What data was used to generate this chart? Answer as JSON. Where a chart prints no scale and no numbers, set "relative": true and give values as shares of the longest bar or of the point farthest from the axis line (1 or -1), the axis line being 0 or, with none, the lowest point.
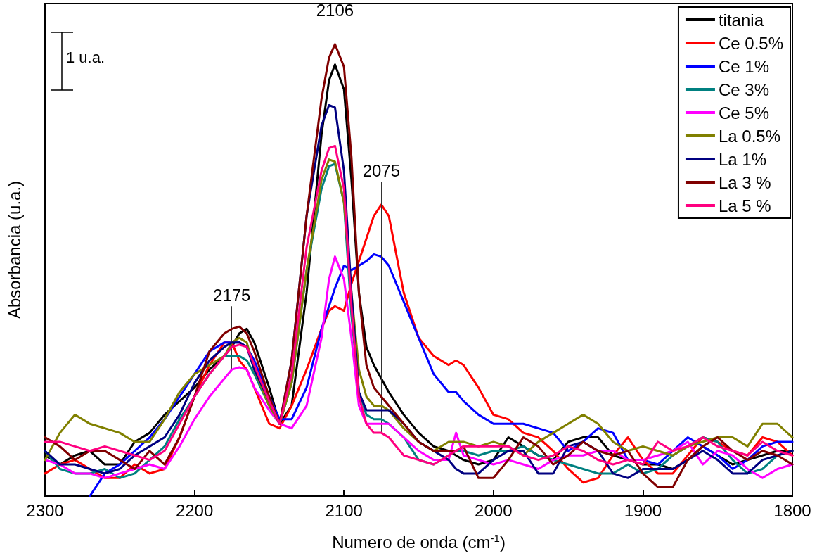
{
  "chart_data": {
    "type": "line",
    "relative": true,
    "xlabel": "Numero de onda (cm$^{-1}$)",
    "ylabel": "Absorbancia (u.a.)",
    "xlim": [
      2300,
      1800
    ],
    "xticks": [
      2300,
      2200,
      2100,
      2000,
      1900,
      1800
    ],
    "legend": "top right",
    "marker": "none",
    "line_style": "solid",
    "grid": false,
    "annotations": [
      "1 u.a."
    ],
    "ref_lines": [
      {
        "axis": "x",
        "value": 2175,
        "label": "2175"
      },
      {
        "axis": "x",
        "value": 2106,
        "label": "2106"
      },
      {
        "axis": "x",
        "value": 2075,
        "label": "2075"
      }
    ],
    "x": [
      2300,
      2290,
      2280,
      2270,
      2260,
      2250,
      2240,
      2230,
      2220,
      2210,
      2200,
      2190,
      2180,
      2175,
      2170,
      2165,
      2160,
      2150,
      2143,
      2135,
      2125,
      2115,
      2110,
      2106,
      2100,
      2095,
      2090,
      2085,
      2080,
      2075,
      2070,
      2060,
      2050,
      2040,
      2030,
      2025,
      2020,
      2010,
      2000,
      1990,
      1980,
      1970,
      1960,
      1950,
      1940,
      1930,
      1920,
      1910,
      1900,
      1890,
      1880,
      1870,
      1860,
      1850,
      1840,
      1830,
      1820,
      1810,
      1800
    ],
    "series": [
      {
        "name": "titania",
        "color": "#000000",
        "values": [
          0.09,
          0.07,
          0.09,
          0.1,
          0.07,
          0.07,
          0.12,
          0.14,
          0.18,
          0.21,
          0.24,
          0.28,
          0.31,
          0.33,
          0.36,
          0.37,
          0.34,
          0.24,
          0.16,
          0.2,
          0.45,
          0.8,
          0.92,
          0.955,
          0.9,
          0.7,
          0.45,
          0.33,
          0.29,
          0.26,
          0.23,
          0.18,
          0.14,
          0.11,
          0.1,
          0.09,
          0.08,
          0.07,
          0.08,
          0.13,
          0.11,
          0.09,
          0.08,
          0.12,
          0.13,
          0.13,
          0.09,
          0.08,
          0.07,
          0.07,
          0.06,
          0.08,
          0.11,
          0.09,
          0.07,
          0.08,
          0.09,
          0.1,
          0.1
        ]
      },
      {
        "name": "Ce 0.5%",
        "color": "#ff0000",
        "values": [
          0.05,
          0.07,
          0.08,
          0.06,
          0.04,
          0.04,
          0.07,
          0.05,
          0.06,
          0.13,
          0.22,
          0.29,
          0.34,
          0.34,
          0.3,
          0.28,
          0.24,
          0.16,
          0.15,
          0.2,
          0.28,
          0.37,
          0.41,
          0.42,
          0.41,
          0.47,
          0.52,
          0.57,
          0.62,
          0.645,
          0.62,
          0.45,
          0.35,
          0.31,
          0.29,
          0.3,
          0.29,
          0.24,
          0.18,
          0.17,
          0.14,
          0.13,
          0.1,
          0.06,
          0.03,
          0.04,
          0.09,
          0.13,
          0.08,
          0.05,
          0.05,
          0.09,
          0.13,
          0.12,
          0.1,
          0.09,
          0.13,
          0.12,
          0.09
        ]
      },
      {
        "name": "Ce 1%",
        "color": "#0000ff",
        "values": [
          null,
          null,
          null,
          0,
          0.05,
          0.07,
          0.1,
          0.13,
          0.17,
          0.22,
          0.27,
          0.32,
          0.34,
          0.34,
          0.34,
          0.33,
          0.3,
          0.22,
          0.17,
          0.17,
          0.24,
          0.37,
          0.42,
          0.46,
          0.51,
          0.5,
          0.51,
          0.52,
          0.535,
          0.53,
          0.51,
          0.43,
          0.35,
          0.27,
          0.23,
          0.23,
          0.21,
          0.18,
          0.16,
          0.16,
          0.16,
          0.15,
          0.14,
          0.1,
          0.12,
          0.15,
          0.14,
          0.08,
          0.08,
          0.07,
          0.1,
          0.13,
          0.11,
          0.09,
          0.06,
          0.08,
          0.11,
          0.12,
          0.12
        ]
      },
      {
        "name": "Ce 3%",
        "color": "#008080",
        "values": [
          0.1,
          0.06,
          0.05,
          0.05,
          0.06,
          0.04,
          0.05,
          0.08,
          0.11,
          0.17,
          0.22,
          0.27,
          0.31,
          0.31,
          0.31,
          0.3,
          0.27,
          0.2,
          0.16,
          0.25,
          0.5,
          0.68,
          0.73,
          0.735,
          0.65,
          0.4,
          0.23,
          0.18,
          0.17,
          0.17,
          0.16,
          0.13,
          0.08,
          0.07,
          0.09,
          0.1,
          0.1,
          0.09,
          0.1,
          0.1,
          0.11,
          0.09,
          0.08,
          0.07,
          0.06,
          0.05,
          0.05,
          0.07,
          0.05,
          0.06,
          0.09,
          0.11,
          0.13,
          0.12,
          0.08,
          0.05,
          0.06,
          0.09,
          0.1
        ]
      },
      {
        "name": "Ce 5%",
        "color": "#ff00ff",
        "values": [
          0.08,
          0.07,
          0.05,
          0.05,
          0.04,
          0.05,
          0.06,
          0.07,
          0.06,
          0.11,
          0.17,
          0.22,
          0.26,
          0.28,
          0.285,
          0.28,
          0.24,
          0.19,
          0.16,
          0.15,
          0.2,
          0.35,
          0.48,
          0.53,
          0.48,
          0.35,
          0.2,
          0.16,
          0.16,
          0.16,
          0.16,
          0.13,
          0.1,
          0.08,
          0.08,
          0.14,
          0.09,
          0.08,
          0.07,
          0.08,
          0.07,
          0.06,
          0.08,
          0.09,
          0.09,
          0.1,
          0.1,
          0.08,
          0.08,
          0.09,
          0.1,
          0.12,
          0.07,
          0.1,
          0.09,
          0.06,
          0.04,
          0.06,
          0.07
        ]
      },
      {
        "name": "La 0.5%",
        "color": "#808000",
        "values": [
          0.08,
          0.14,
          0.18,
          0.16,
          0.15,
          0.14,
          0.12,
          0.12,
          0.17,
          0.23,
          0.27,
          0.29,
          0.31,
          0.34,
          0.35,
          0.34,
          0.28,
          0.2,
          0.16,
          0.25,
          0.5,
          0.7,
          0.745,
          0.74,
          0.65,
          0.45,
          0.28,
          0.22,
          0.2,
          0.2,
          0.19,
          0.15,
          0.12,
          0.1,
          0.12,
          0.12,
          0.12,
          0.11,
          0.12,
          0.11,
          0.09,
          0.12,
          0.14,
          0.16,
          0.18,
          0.16,
          0.12,
          0.1,
          0.11,
          0.1,
          0.09,
          0.11,
          0.12,
          0.13,
          0.13,
          0.11,
          0.16,
          0.16,
          0.13
        ]
      },
      {
        "name": "La 1%",
        "color": "#000080",
        "values": [
          0.1,
          0.07,
          0.07,
          0.06,
          0.05,
          0.06,
          0.09,
          0.11,
          0.13,
          0.18,
          0.25,
          0.3,
          0.33,
          0.34,
          0.34,
          0.33,
          0.28,
          0.21,
          0.16,
          0.3,
          0.62,
          0.82,
          0.865,
          0.86,
          0.72,
          0.45,
          0.23,
          0.19,
          0.19,
          0.19,
          0.19,
          0.16,
          0.12,
          0.1,
          0.08,
          0.06,
          0.05,
          0.05,
          0.08,
          0.1,
          0.1,
          0.05,
          0.05,
          0.11,
          0.12,
          0.1,
          0.05,
          0.04,
          0.06,
          0.06,
          0.06,
          0.08,
          0.1,
          0.08,
          0.05,
          0.05,
          0.08,
          0.09,
          0.1
        ]
      },
      {
        "name": "La 3 %",
        "color": "#800000",
        "values": [
          0.13,
          0.11,
          0.08,
          0.1,
          0.1,
          0.08,
          0.06,
          0.1,
          0.07,
          0.13,
          0.22,
          0.32,
          0.36,
          0.37,
          0.375,
          0.36,
          0.32,
          0.22,
          0.16,
          0.3,
          0.62,
          0.88,
          0.97,
          1,
          0.95,
          0.75,
          0.45,
          0.29,
          0.24,
          0.22,
          0.2,
          0.16,
          0.12,
          0.1,
          0.1,
          0.1,
          0.11,
          0.04,
          0.04,
          0.08,
          0.13,
          0.11,
          0.07,
          0.09,
          0.12,
          0.1,
          0.09,
          0.1,
          0.05,
          0.02,
          0.02,
          0.08,
          0.11,
          0.13,
          0.1,
          0.08,
          0.1,
          0.09,
          0.07
        ]
      },
      {
        "name": "La 5 %",
        "color": "#ff0080",
        "values": [
          0.12,
          0.12,
          0.11,
          0.1,
          0.11,
          0.1,
          0.09,
          0.08,
          0.1,
          0.16,
          0.22,
          0.27,
          0.31,
          0.33,
          0.335,
          0.33,
          0.29,
          0.21,
          0.16,
          0.27,
          0.55,
          0.72,
          0.77,
          0.775,
          0.68,
          0.42,
          0.22,
          0.16,
          0.14,
          0.14,
          0.13,
          0.09,
          0.08,
          0.07,
          0.09,
          0.1,
          0.11,
          0.11,
          0.11,
          0.11,
          0.09,
          0.08,
          0.09,
          0.11,
          0.1,
          0.08,
          0.07,
          0.08,
          0.07,
          0.12,
          0.1,
          0.11,
          0.13,
          0.11,
          0.1,
          0.09,
          0.12,
          0.1,
          0.09
        ]
      }
    ]
  }
}
